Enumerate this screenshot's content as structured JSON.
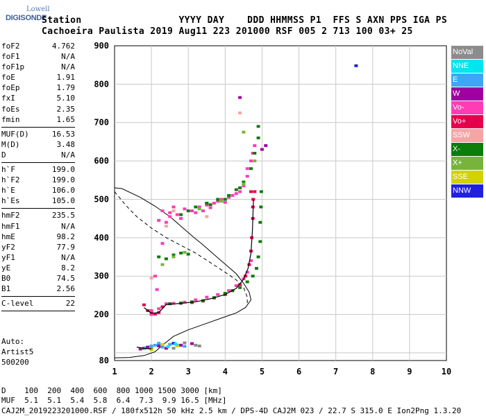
{
  "logo": {
    "line1": "Lowell",
    "line2": "DIGISONDE"
  },
  "header": {
    "line1": "Station                 YYYY DAY    DDD HHMMSS P1  FFS S AXN PPS IGA PS",
    "line2": "Cachoeira Paulista 2019 Aug11 223 201000 RSF 005 2 713 100 03+ 25"
  },
  "params_group1": [
    {
      "label": "foF2",
      "value": "4.762"
    },
    {
      "label": "foF1",
      "value": "N/A"
    },
    {
      "label": "foF1p",
      "value": "N/A"
    },
    {
      "label": "foE",
      "value": "1.91"
    },
    {
      "label": "foEp",
      "value": "1.79"
    },
    {
      "label": "fxI",
      "value": "5.10"
    },
    {
      "label": "foEs",
      "value": "2.35"
    },
    {
      "label": "fmin",
      "value": "1.65"
    }
  ],
  "params_group2": [
    {
      "label": "MUF(D)",
      "value": "16.53"
    },
    {
      "label": "M(D)",
      "value": "3.48"
    },
    {
      "label": "D",
      "value": "N/A"
    }
  ],
  "params_group3": [
    {
      "label": "h`F",
      "value": "199.0"
    },
    {
      "label": "h`F2",
      "value": "199.0"
    },
    {
      "label": "h`E",
      "value": "106.0"
    },
    {
      "label": "h`Es",
      "value": "105.0"
    }
  ],
  "params_group4": [
    {
      "label": "hmF2",
      "value": "235.5"
    },
    {
      "label": "hmF1",
      "value": "N/A"
    },
    {
      "label": "hmE",
      "value": "98.2"
    },
    {
      "label": "yF2",
      "value": "77.9"
    },
    {
      "label": "yF1",
      "value": "N/A"
    },
    {
      "label": "yE",
      "value": "8.2"
    },
    {
      "label": "B0",
      "value": "74.5"
    },
    {
      "label": "B1",
      "value": "2.56"
    }
  ],
  "params_group5": [
    {
      "label": "C-level",
      "value": "22"
    }
  ],
  "extra": {
    "l1": "Auto:",
    "l2": "Artist5",
    "l3": "500200"
  },
  "legend": [
    {
      "label": "NoVal",
      "color": "#8c8c8c"
    },
    {
      "label": "NNE",
      "color": "#00e5ee"
    },
    {
      "label": "E",
      "color": "#3ba7f5"
    },
    {
      "label": "W",
      "color": "#a000a0"
    },
    {
      "label": "Vo-",
      "color": "#ff3cb4"
    },
    {
      "label": "Vo+",
      "color": "#e6004c"
    },
    {
      "label": "SSW",
      "color": "#f5a5a5"
    },
    {
      "label": "X-",
      "color": "#0a7d0a"
    },
    {
      "label": "X+",
      "color": "#78b43c"
    },
    {
      "label": "SSE",
      "color": "#d2d200"
    },
    {
      "label": "NNW",
      "color": "#2020e0"
    }
  ],
  "muf_table": {
    "row1": "D    100  200  400  600  800 1000 1500 3000 [km]",
    "row2": "MUF  5.1  5.1  5.4  5.8  6.4  7.3  9.9 16.5 [MHz]"
  },
  "footer": "CAJ2M_2019223201000.RSF / 180fx512h 50 kHz 2.5 km / DPS-4D CAJ2M 023 / 22.7 S 315.0 E Ion2Png 1.3.20",
  "chart_data": {
    "type": "scatter",
    "xlim": [
      1,
      10
    ],
    "ylim": [
      80,
      900
    ],
    "x_ticks": [
      1,
      2,
      3,
      4,
      5,
      6,
      7,
      8,
      9,
      10
    ],
    "y_ticks": [
      100,
      200,
      300,
      400,
      500,
      600,
      700,
      800,
      900
    ],
    "y_tick_labels": [
      "",
      "200",
      "300",
      "400",
      "500",
      "600",
      "700",
      "800",
      "900"
    ],
    "x_tick_labels": [
      "1",
      "2",
      "3",
      "4",
      "5",
      "6",
      "7",
      "8",
      "9",
      "10"
    ],
    "bottom_y_label": "80",
    "grid": true,
    "series": [
      {
        "name": "Vo+",
        "color": "#e6004c",
        "points": [
          [
            1.8,
            225
          ],
          [
            1.9,
            210
          ],
          [
            2.0,
            203
          ],
          [
            2.1,
            201
          ],
          [
            2.2,
            205
          ],
          [
            2.3,
            220
          ],
          [
            2.5,
            228
          ],
          [
            2.8,
            229
          ],
          [
            3.1,
            231
          ],
          [
            3.4,
            235
          ],
          [
            3.7,
            243
          ],
          [
            4.0,
            252
          ],
          [
            4.2,
            262
          ],
          [
            4.4,
            278
          ],
          [
            4.55,
            300
          ],
          [
            4.65,
            330
          ],
          [
            4.7,
            365
          ],
          [
            4.72,
            400
          ],
          [
            4.75,
            450
          ],
          [
            4.75,
            480
          ],
          [
            4.76,
            500
          ],
          [
            4.8,
            520
          ],
          [
            4.7,
            520
          ]
        ]
      },
      {
        "name": "Vo-",
        "color": "#ff3cb4",
        "points": [
          [
            2.0,
            210
          ],
          [
            2.2,
            215
          ],
          [
            2.4,
            228
          ],
          [
            2.6,
            229
          ],
          [
            2.9,
            232
          ],
          [
            3.2,
            238
          ],
          [
            3.5,
            245
          ],
          [
            3.8,
            252
          ],
          [
            4.1,
            262
          ],
          [
            4.3,
            275
          ],
          [
            4.5,
            293
          ],
          [
            4.6,
            310
          ],
          [
            4.7,
            340
          ],
          [
            2.3,
            470
          ],
          [
            2.5,
            465
          ],
          [
            2.7,
            460
          ],
          [
            2.9,
            475
          ],
          [
            3.1,
            470
          ],
          [
            3.3,
            480
          ],
          [
            3.5,
            485
          ],
          [
            3.7,
            490
          ],
          [
            3.9,
            500
          ],
          [
            4.1,
            505
          ],
          [
            4.3,
            515
          ],
          [
            4.5,
            535
          ],
          [
            4.6,
            560
          ],
          [
            4.7,
            600
          ],
          [
            4.8,
            640
          ],
          [
            2.5,
            455
          ],
          [
            2.8,
            450
          ],
          [
            3.2,
            465
          ],
          [
            3.6,
            478
          ],
          [
            4.0,
            492
          ],
          [
            4.4,
            520
          ],
          [
            2.4,
            440
          ],
          [
            2.2,
            445
          ],
          [
            2.6,
            480
          ],
          [
            3.4,
            470
          ],
          [
            3.8,
            495
          ],
          [
            4.2,
            510
          ],
          [
            4.6,
            580
          ],
          [
            4.75,
            620
          ],
          [
            2.1,
            300
          ],
          [
            2.3,
            385
          ],
          [
            2.15,
            265
          ],
          [
            2.0,
            200
          ]
        ]
      },
      {
        "name": "X-",
        "color": "#0a7d0a",
        "points": [
          [
            2.5,
            228
          ],
          [
            2.8,
            230
          ],
          [
            3.1,
            233
          ],
          [
            3.4,
            236
          ],
          [
            3.7,
            244
          ],
          [
            4.0,
            255
          ],
          [
            4.2,
            262
          ],
          [
            4.4,
            270
          ],
          [
            4.6,
            285
          ],
          [
            4.75,
            300
          ],
          [
            4.85,
            320
          ],
          [
            4.9,
            350
          ],
          [
            4.95,
            390
          ],
          [
            4.95,
            440
          ],
          [
            4.97,
            480
          ],
          [
            4.98,
            520
          ],
          [
            2.6,
            355
          ],
          [
            2.8,
            360
          ],
          [
            3.0,
            357
          ],
          [
            2.4,
            345
          ],
          [
            2.2,
            350
          ],
          [
            3.0,
            470
          ],
          [
            3.2,
            480
          ],
          [
            3.5,
            490
          ],
          [
            3.8,
            500
          ],
          [
            4.1,
            510
          ],
          [
            4.3,
            525
          ],
          [
            4.5,
            545
          ],
          [
            4.7,
            580
          ],
          [
            4.8,
            620
          ],
          [
            4.9,
            660
          ],
          [
            4.9,
            690
          ],
          [
            2.8,
            460
          ],
          [
            3.6,
            486
          ],
          [
            4.0,
            500
          ],
          [
            4.4,
            530
          ],
          [
            1.8,
            112
          ],
          [
            2.0,
            110
          ]
        ]
      },
      {
        "name": "X+",
        "color": "#78b43c",
        "points": [
          [
            2.6,
            350
          ],
          [
            2.9,
            362
          ],
          [
            2.3,
            330
          ],
          [
            3.3,
            475
          ],
          [
            3.9,
            495
          ],
          [
            4.5,
            540
          ],
          [
            4.8,
            600
          ],
          [
            4.5,
            675
          ]
        ]
      },
      {
        "name": "E",
        "color": "#3ba7f5",
        "points": [
          [
            1.85,
            113
          ],
          [
            2.0,
            118
          ],
          [
            2.1,
            120
          ],
          [
            2.3,
            115
          ],
          [
            2.5,
            122
          ],
          [
            2.7,
            120
          ],
          [
            2.9,
            117
          ],
          [
            2.2,
            125
          ]
        ]
      },
      {
        "name": "W",
        "color": "#a000a0",
        "points": [
          [
            1.7,
            110
          ],
          [
            1.9,
            115
          ],
          [
            2.2,
            118
          ],
          [
            2.4,
            112
          ],
          [
            2.8,
            120
          ],
          [
            3.1,
            124
          ],
          [
            5.1,
            640
          ],
          [
            5.0,
            630
          ],
          [
            4.4,
            765
          ]
        ]
      },
      {
        "name": "SSW",
        "color": "#f5a5a5",
        "points": [
          [
            2.0,
            295
          ],
          [
            2.4,
            430
          ],
          [
            4.4,
            725
          ],
          [
            2.6,
            470
          ],
          [
            3.5,
            455
          ]
        ]
      },
      {
        "name": "NNW",
        "color": "#2020e0",
        "points": [
          [
            7.55,
            848
          ],
          [
            2.6,
            125
          ]
        ]
      },
      {
        "name": "SSE",
        "color": "#d2d200",
        "points": [
          [
            2.3,
            122
          ],
          [
            2.0,
            108
          ],
          [
            2.7,
            118
          ]
        ]
      },
      {
        "name": "NNE",
        "color": "#00e5ee",
        "points": [
          [
            2.45,
            116
          ],
          [
            2.65,
            123
          ]
        ]
      },
      {
        "name": "NoVal",
        "color": "#8c8c8c",
        "points": [
          [
            2.9,
            126
          ],
          [
            3.2,
            120
          ],
          [
            3.3,
            118
          ],
          [
            2.6,
            112
          ]
        ]
      }
    ],
    "trace_solid": [
      [
        1.0,
        87
      ],
      [
        1.4,
        88
      ],
      [
        1.8,
        93
      ],
      [
        2.1,
        103
      ],
      [
        2.3,
        120
      ],
      [
        2.6,
        143
      ],
      [
        3.0,
        160
      ],
      [
        3.5,
        177
      ],
      [
        4.0,
        194
      ],
      [
        4.3,
        204
      ],
      [
        4.55,
        218
      ],
      [
        4.7,
        238
      ],
      [
        4.65,
        258
      ],
      [
        4.5,
        281
      ],
      [
        4.3,
        306
      ],
      [
        4.0,
        331
      ],
      [
        3.7,
        356
      ],
      [
        3.4,
        381
      ],
      [
        3.1,
        405
      ],
      [
        2.8,
        430
      ],
      [
        2.5,
        455
      ],
      [
        2.1,
        482
      ],
      [
        1.7,
        505
      ],
      [
        1.2,
        528
      ],
      [
        1.0,
        530
      ]
    ],
    "trace_dashed": [
      [
        1.0,
        520
      ],
      [
        1.3,
        485
      ],
      [
        1.6,
        455
      ],
      [
        2.0,
        425
      ],
      [
        2.4,
        400
      ],
      [
        2.8,
        380
      ],
      [
        3.2,
        360
      ],
      [
        3.6,
        335
      ],
      [
        4.0,
        310
      ],
      [
        4.3,
        290
      ],
      [
        4.5,
        270
      ],
      [
        4.6,
        245
      ],
      [
        4.6,
        225
      ]
    ],
    "trace_vo_fit": [
      [
        1.8,
        218
      ],
      [
        2.0,
        203
      ],
      [
        2.2,
        205
      ],
      [
        2.4,
        226
      ],
      [
        2.8,
        229
      ],
      [
        3.2,
        233
      ],
      [
        3.6,
        241
      ],
      [
        4.0,
        252
      ],
      [
        4.3,
        268
      ],
      [
        4.5,
        292
      ],
      [
        4.62,
        320
      ],
      [
        4.7,
        360
      ],
      [
        4.74,
        420
      ],
      [
        4.76,
        480
      ],
      [
        4.77,
        500
      ]
    ],
    "trace_vo_fit_low": [
      [
        1.6,
        115
      ],
      [
        1.8,
        112
      ],
      [
        2.0,
        110
      ]
    ]
  }
}
